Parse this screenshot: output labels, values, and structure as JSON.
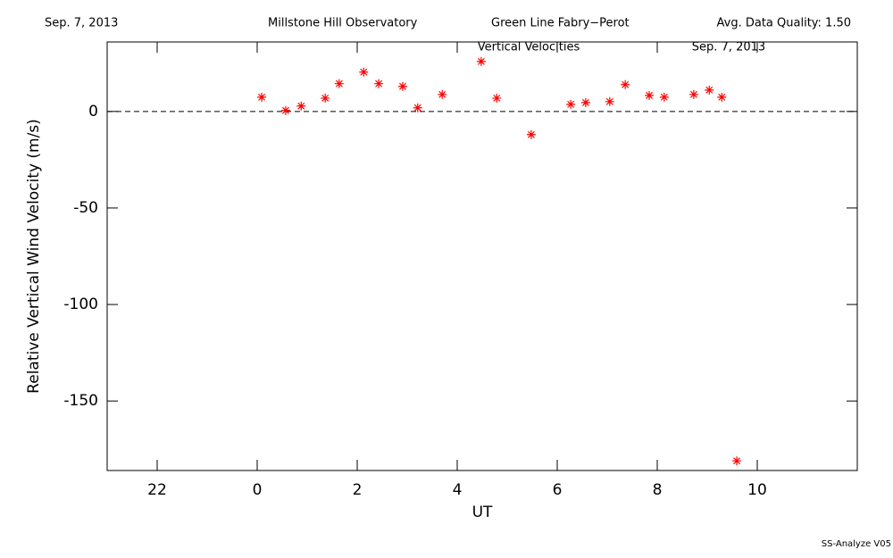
{
  "chart_data": {
    "type": "scatter",
    "header": {
      "date": "Sep. 7, 2013",
      "observatory": "Millstone Hill Observatory",
      "instrument": "Green Line Fabry−Perot",
      "quality": "Avg. Data Quality: 1.50"
    },
    "title": "Vertical Velocities",
    "subtitle": "Sep. 7, 2013",
    "footer": "SS-Analyze V05",
    "x_label": "UT",
    "y_label": "Relative Vertical Wind Velocity (m/s)",
    "xlim": [
      21,
      36
    ],
    "xticks": [
      {
        "value": 22,
        "label": "22"
      },
      {
        "value": 24,
        "label": "0"
      },
      {
        "value": 26,
        "label": "2"
      },
      {
        "value": 28,
        "label": "4"
      },
      {
        "value": 30,
        "label": "6"
      },
      {
        "value": 32,
        "label": "8"
      },
      {
        "value": 34,
        "label": "10"
      }
    ],
    "ylim": [
      -186,
      36
    ],
    "yticks": [
      -150,
      -100,
      -50,
      0
    ],
    "reference_line": 0,
    "series": [
      {
        "color": "#ff0000",
        "x": [
          24.09,
          24.57,
          24.88,
          25.36,
          25.64,
          26.13,
          26.43,
          26.91,
          27.21,
          27.7,
          28.48,
          28.79,
          29.48,
          30.27,
          30.57,
          31.05,
          31.36,
          31.84,
          32.14,
          32.73,
          33.04,
          33.29,
          33.59
        ],
        "values": [
          7.4,
          0.5,
          2.8,
          6.9,
          14.4,
          20.4,
          14.4,
          13,
          1.9,
          8.8,
          25.9,
          6.9,
          -12,
          3.7,
          4.6,
          5.1,
          13.9,
          8.3,
          7.4,
          8.8,
          11.1,
          7.4,
          -181
        ]
      }
    ]
  }
}
